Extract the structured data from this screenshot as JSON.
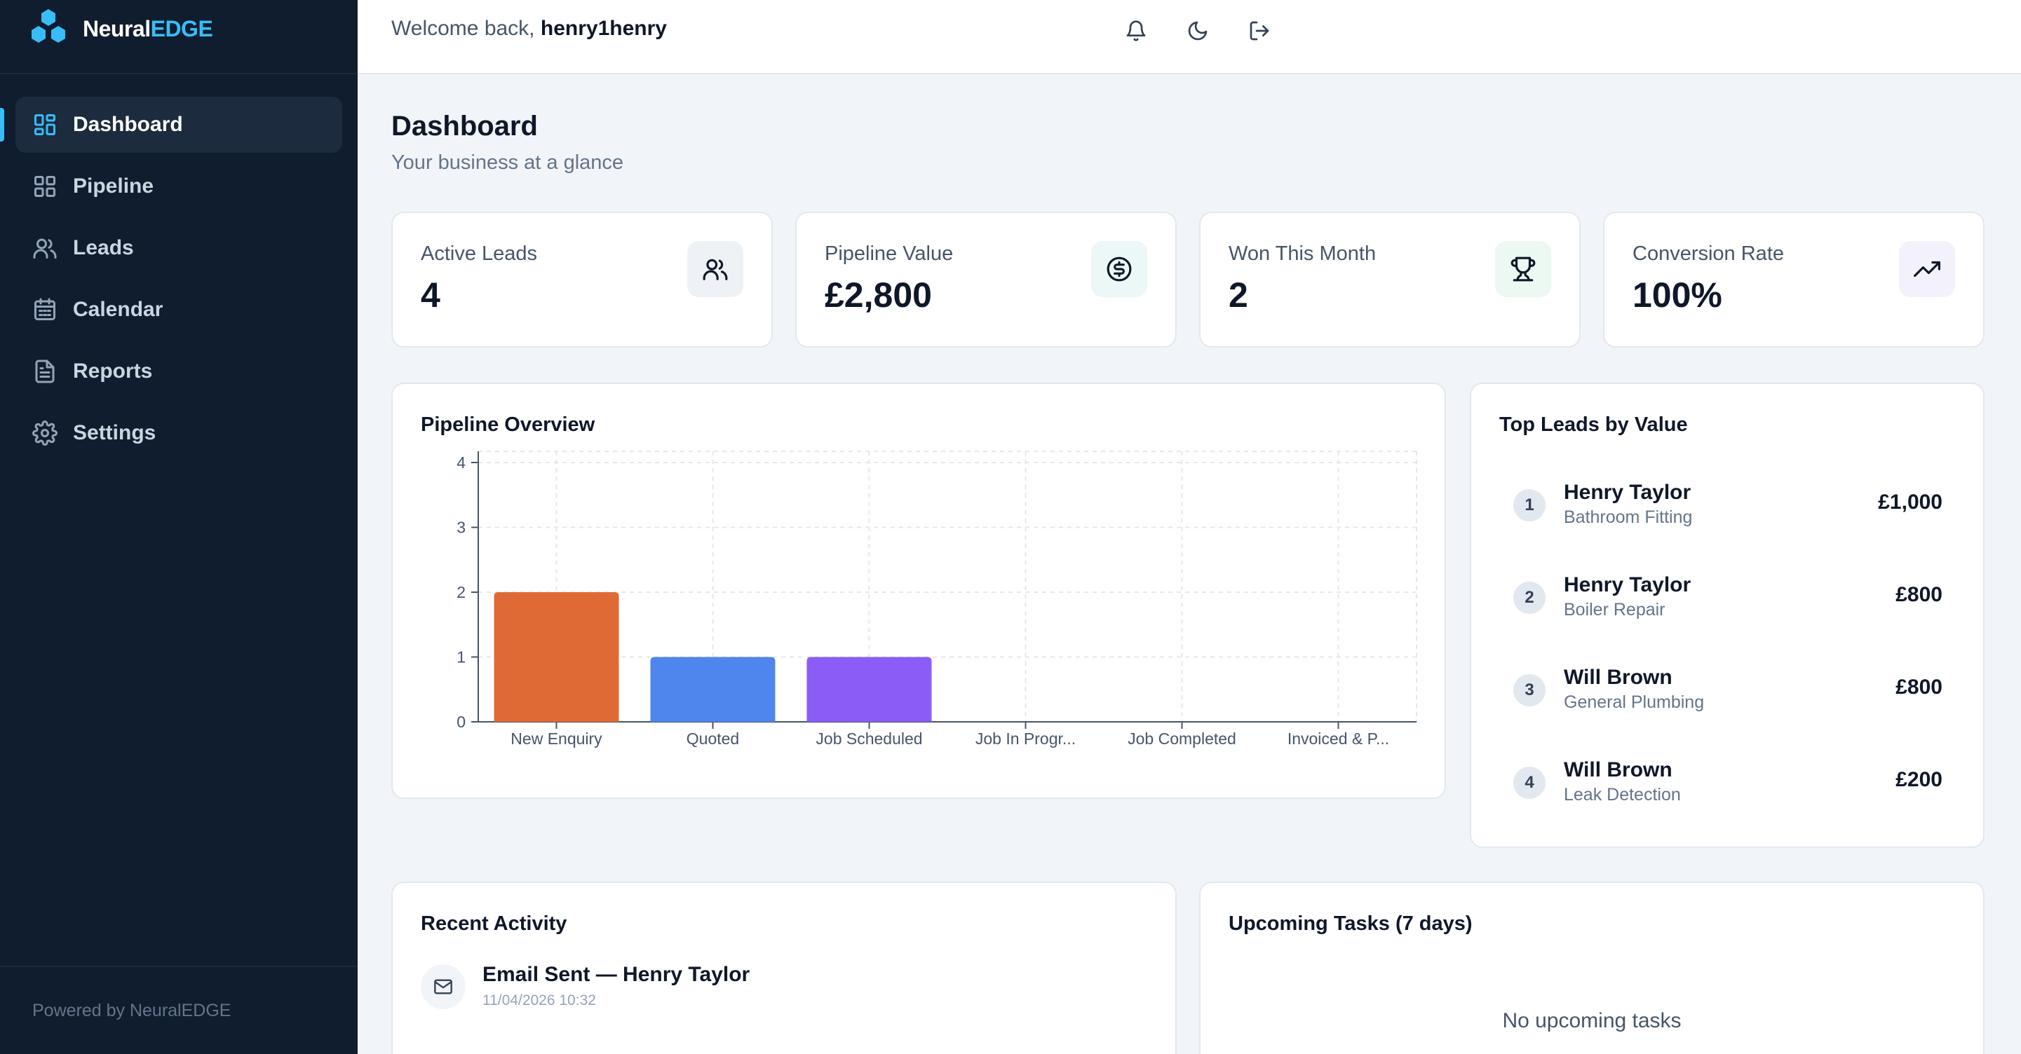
{
  "app": {
    "brand_prefix": "Neural",
    "brand_accent": "EDGE",
    "accent_color": "#38bdf8"
  },
  "sidebar": {
    "items": [
      {
        "label": "Dashboard",
        "icon": "dashboard-icon",
        "active": true
      },
      {
        "label": "Pipeline",
        "icon": "grid-icon"
      },
      {
        "label": "Leads",
        "icon": "users-icon"
      },
      {
        "label": "Calendar",
        "icon": "calendar-icon"
      },
      {
        "label": "Reports",
        "icon": "document-icon"
      },
      {
        "label": "Settings",
        "icon": "gear-icon"
      }
    ],
    "footer": "Powered by NeuralEDGE"
  },
  "topbar": {
    "welcome_prefix": "Welcome back,",
    "username": "henry1henry",
    "icons": [
      "bell-icon",
      "moon-icon",
      "logout-icon"
    ]
  },
  "page": {
    "title": "Dashboard",
    "subtitle": "Your business at a glance"
  },
  "stats": [
    {
      "label": "Active Leads",
      "value": "4",
      "icon": "users-icon",
      "icon_bg": "#eef1f5"
    },
    {
      "label": "Pipeline Value",
      "value": "£2,800",
      "icon": "dollar-circle-icon",
      "icon_bg": "#ecf7f7"
    },
    {
      "label": "Won This Month",
      "value": "2",
      "icon": "trophy-icon",
      "icon_bg": "#ecf8f2"
    },
    {
      "label": "Conversion Rate",
      "value": "100%",
      "icon": "trending-up-icon",
      "icon_bg": "#f3f1fb"
    }
  ],
  "pipeline_card": {
    "title": "Pipeline Overview"
  },
  "chart_data": {
    "type": "bar",
    "categories": [
      "New Enquiry",
      "Quoted",
      "Job Scheduled",
      "Job In Progr...",
      "Job Completed",
      "Invoiced & P..."
    ],
    "values": [
      2,
      1,
      1,
      0,
      0,
      0
    ],
    "colors": [
      "#e06a35",
      "#4f86ed",
      "#8b5cf6",
      "#94a3b8",
      "#94a3b8",
      "#94a3b8"
    ],
    "ylim": [
      0,
      4
    ],
    "yticks": [
      0,
      1,
      2,
      3,
      4
    ],
    "grid": true,
    "xlabel": "",
    "ylabel": ""
  },
  "top_leads": {
    "title": "Top Leads by Value",
    "items": [
      {
        "rank": "1",
        "name": "Henry Taylor",
        "service": "Bathroom Fitting",
        "value": "£1,000"
      },
      {
        "rank": "2",
        "name": "Henry Taylor",
        "service": "Boiler Repair",
        "value": "£800"
      },
      {
        "rank": "3",
        "name": "Will Brown",
        "service": "General Plumbing",
        "value": "£800"
      },
      {
        "rank": "4",
        "name": "Will Brown",
        "service": "Leak Detection",
        "value": "£200"
      }
    ]
  },
  "recent_activity": {
    "title": "Recent Activity",
    "items": [
      {
        "title": "Email Sent — Henry Taylor",
        "time": "11/04/2026 10:32",
        "icon": "mail-icon"
      }
    ]
  },
  "upcoming_tasks": {
    "title": "Upcoming Tasks (7 days)",
    "empty_text": "No upcoming tasks"
  }
}
